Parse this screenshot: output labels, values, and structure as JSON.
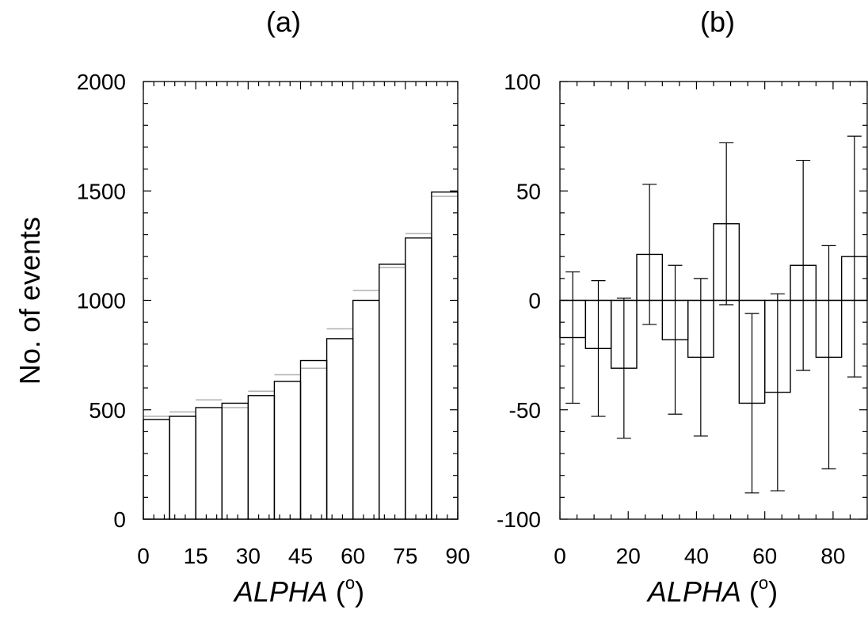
{
  "chart_data": [
    {
      "panel": "(a)",
      "type": "bar",
      "title": "(a)",
      "xlabel": "ALPHA",
      "xlabel_unit": "o",
      "ylabel": "No. of events",
      "xlim": [
        0,
        90
      ],
      "ylim": [
        0,
        2000
      ],
      "xticks": [
        "0",
        "15",
        "30",
        "45",
        "60",
        "75",
        "90"
      ],
      "yticks": [
        "0",
        "500",
        "1000",
        "1500",
        "2000"
      ],
      "bin_width": 7.5,
      "bin_edges": [
        0,
        7.5,
        15,
        22.5,
        30,
        37.5,
        45,
        52.5,
        60,
        67.5,
        75,
        82.5,
        90
      ],
      "series": [
        {
          "name": "",
          "color": "#000000",
          "values": [
            455,
            470,
            510,
            530,
            565,
            630,
            725,
            825,
            1000,
            1165,
            1285,
            1495
          ]
        },
        {
          "name": "",
          "color": "#b0b0b0",
          "values": [
            470,
            490,
            545,
            510,
            585,
            660,
            690,
            870,
            1045,
            1150,
            1305,
            1475
          ]
        }
      ]
    },
    {
      "panel": "(b)",
      "type": "bar",
      "title": "(b)",
      "xlabel": "ALPHA",
      "xlabel_unit": "o",
      "ylabel": "",
      "xlim": [
        0,
        90
      ],
      "ylim": [
        -100,
        100
      ],
      "xticks": [
        "0",
        "20",
        "40",
        "60",
        "80"
      ],
      "yticks": [
        "-100",
        "-50",
        "0",
        "50",
        "100"
      ],
      "bin_width": 7.5,
      "bin_edges": [
        0,
        7.5,
        15,
        22.5,
        30,
        37.5,
        45,
        52.5,
        60,
        67.5,
        75,
        82.5,
        90
      ],
      "values": [
        -17,
        -22,
        -31,
        21,
        -18,
        -26,
        35,
        -47,
        -42,
        16,
        -26,
        20
      ],
      "errors": [
        30,
        31,
        32,
        32,
        34,
        36,
        37,
        41,
        45,
        48,
        51,
        55
      ]
    }
  ]
}
